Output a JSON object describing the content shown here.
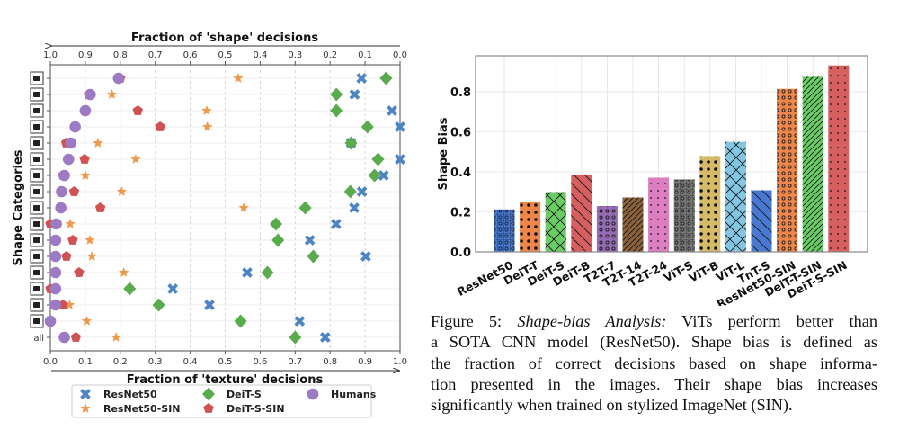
{
  "chart_data": [
    {
      "type": "scatter",
      "title": "",
      "xlabel": "Fraction of 'texture' decisions",
      "x2label": "Fraction of 'shape' decisions",
      "ylabel": "Shape Categories",
      "xlim": [
        0.0,
        1.0
      ],
      "x2lim": [
        1.0,
        0.0
      ],
      "xticks": [
        "0.0",
        "0.1",
        "0.2",
        "0.3",
        "0.4",
        "0.5",
        "0.6",
        "0.7",
        "0.8",
        "0.9",
        "1.0"
      ],
      "x2ticks": [
        "1.0",
        "0.9",
        "0.8",
        "0.7",
        "0.6",
        "0.5",
        "0.4",
        "0.3",
        "0.2",
        "0.1",
        "0.0"
      ],
      "grid": true,
      "legend_position": "bottom",
      "categories": [
        {
          "icon": "boat-icon"
        },
        {
          "icon": "bear-icon"
        },
        {
          "icon": "airplane-icon"
        },
        {
          "icon": "knife-icon"
        },
        {
          "icon": "dog-icon"
        },
        {
          "icon": "bird-icon"
        },
        {
          "icon": "elephant-icon"
        },
        {
          "icon": "cat-icon"
        },
        {
          "icon": "keyboard-icon"
        },
        {
          "icon": "oven-icon"
        },
        {
          "icon": "truck-icon"
        },
        {
          "icon": "chair-icon"
        },
        {
          "icon": "car-icon"
        },
        {
          "icon": "clock-icon"
        },
        {
          "icon": "bottle-icon"
        },
        {
          "icon": "bicycle-icon"
        },
        {
          "label": "all"
        }
      ],
      "series": [
        {
          "name": "ResNet50",
          "marker": "x",
          "color": "#4c84c4",
          "values": [
            0.89,
            0.87,
            0.977,
            1.0,
            0.86,
            1.0,
            0.953,
            0.891,
            0.869,
            0.817,
            0.742,
            0.902,
            0.563,
            0.35,
            0.455,
            0.713,
            0.786
          ]
        },
        {
          "name": "ResNet50-SIN",
          "marker": "star",
          "color": "#ee9a4a",
          "values": [
            0.537,
            0.176,
            0.447,
            0.449,
            0.136,
            0.244,
            0.1,
            0.204,
            0.553,
            0.057,
            0.113,
            0.119,
            0.21,
            0.01,
            0.055,
            0.104,
            0.188
          ]
        },
        {
          "name": "DeiT-S",
          "marker": "diamond",
          "color": "#5aaa4e",
          "values": [
            0.96,
            0.818,
            0.818,
            0.907,
            0.86,
            0.937,
            0.927,
            0.858,
            0.729,
            0.645,
            0.651,
            0.752,
            0.621,
            0.227,
            0.31,
            0.544,
            0.7
          ]
        },
        {
          "name": "DeiT-S-SIN",
          "marker": "pentagon",
          "color": "#d05252",
          "values": [
            0.2,
            0.11,
            0.25,
            0.314,
            0.045,
            0.098,
            0.036,
            0.068,
            0.143,
            0.0,
            0.064,
            0.046,
            0.082,
            0.0,
            0.036,
            0.0,
            0.073
          ]
        },
        {
          "name": "Humans",
          "marker": "circle",
          "color": "#9c7bc4",
          "values": [
            0.195,
            0.114,
            0.1,
            0.071,
            0.058,
            0.052,
            0.04,
            0.032,
            0.03,
            0.017,
            0.015,
            0.015,
            0.015,
            0.015,
            0.015,
            0.0,
            0.04
          ]
        }
      ]
    },
    {
      "type": "bar",
      "title": "",
      "xlabel": "",
      "ylabel": "Shape Bias",
      "ylim": [
        0.0,
        0.98
      ],
      "yticks": [
        "0.0",
        "0.2",
        "0.4",
        "0.6",
        "0.8"
      ],
      "grid": true,
      "categories": [
        "ResNet50",
        "DeiT-T",
        "DeiT-S",
        "DeiT-B",
        "T2T-7",
        "T2T-14",
        "T2T-24",
        "ViT-S",
        "ViT-B",
        "ViT-L",
        "TnT-S",
        "ResNet50-SIN",
        "DeiT-T-SIN",
        "DeiT-S-SIN"
      ],
      "values": [
        0.212,
        0.251,
        0.299,
        0.387,
        0.229,
        0.272,
        0.371,
        0.362,
        0.479,
        0.55,
        0.308,
        0.815,
        0.875,
        0.932
      ],
      "colors": [
        "#4878d0",
        "#ee854a",
        "#6acc64",
        "#d65f5f",
        "#956cb4",
        "#8c613c",
        "#dc7ec0",
        "#797979",
        "#d5bb67",
        "#82c6e2",
        "#4878d0",
        "#ee854a",
        "#6acc64",
        "#d65f5f"
      ],
      "hatches": [
        "o-grid",
        "big-dots",
        "cross",
        "backslash",
        "small-circles",
        "dense-slash",
        "small-dots",
        "o-grid",
        "big-dots",
        "cross",
        "backslash",
        "small-circles",
        "dense-slash",
        "small-dots"
      ]
    }
  ],
  "caption": {
    "label": "Figure 5: ",
    "title": "Shape-bias Analysis:",
    "lines": [
      " ViTs perform better than",
      "a SOTA CNN model (ResNet50). Shape bias is defined as",
      "the fraction of correct decisions based on shape informa-",
      "tion presented in the images. Their shape bias increases",
      "significantly when trained on stylized ImageNet (SIN)."
    ]
  }
}
